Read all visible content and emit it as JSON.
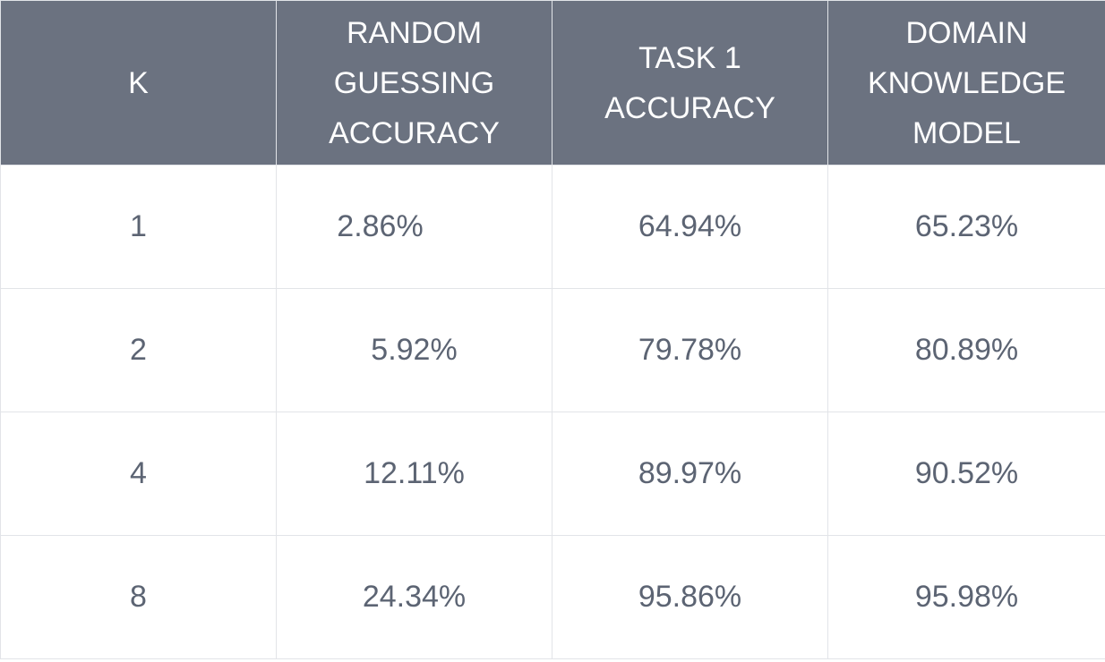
{
  "table": {
    "headers": [
      "K",
      "RANDOM\nGUESSING\nACCURACY",
      "TASK 1\nACCURACY",
      "DOMAIN\nKNOWLEDGE\nMODEL"
    ],
    "rows": [
      [
        "1",
        "2.86%",
        "64.94%",
        "65.23%"
      ],
      [
        "2",
        "5.92%",
        "79.78%",
        "80.89%"
      ],
      [
        "4",
        "12.11%",
        "89.97%",
        "90.52%"
      ],
      [
        "8",
        "24.34%",
        "95.86%",
        "95.98%"
      ]
    ]
  },
  "colors": {
    "header_bg": "#6b7280",
    "header_text": "#ffffff",
    "cell_text": "#5c6473",
    "grid": "#e2e4e8"
  }
}
